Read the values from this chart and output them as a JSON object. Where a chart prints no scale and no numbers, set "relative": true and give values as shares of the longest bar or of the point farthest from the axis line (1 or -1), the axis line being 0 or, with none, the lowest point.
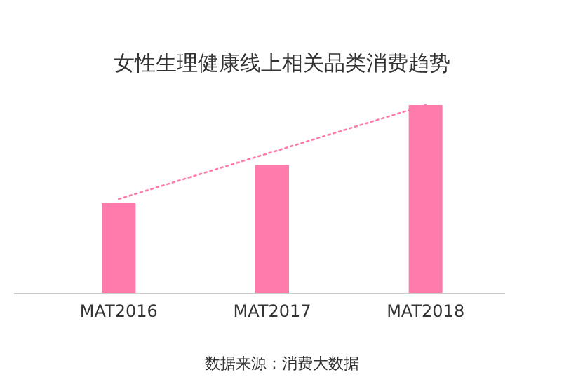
{
  "chart_data": {
    "type": "bar",
    "relative": true,
    "title": "女性生理健康线上相关品类消费趋势",
    "categories": [
      "MAT2016",
      "MAT2017",
      "MAT2018"
    ],
    "series": [
      {
        "color": "#ff7bac",
        "values": [
          0.478,
          0.679,
          1
        ]
      },
      {
        "type": "line",
        "color": "#ff7bac",
        "line_style": "dotted",
        "x": [
          "MAT2016",
          "MAT2018"
        ],
        "values": [
          0.5,
          1
        ]
      }
    ],
    "annotations": [
      "数据来源：消费大数据"
    ]
  }
}
